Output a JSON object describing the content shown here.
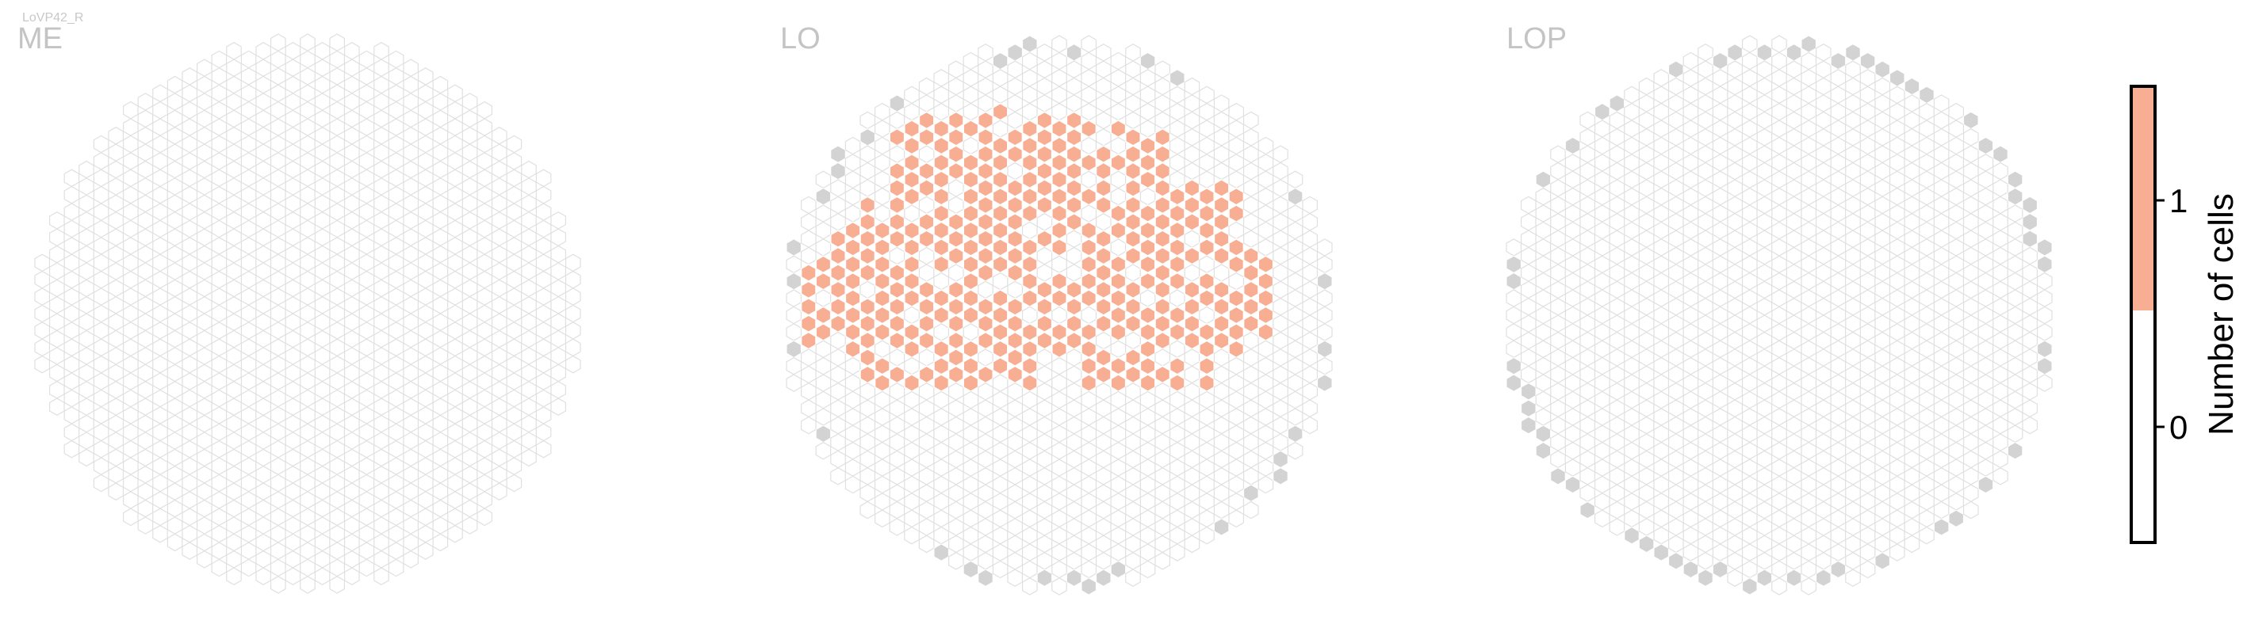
{
  "suptitle": "LoVP42_R",
  "colors": {
    "filled": "#f7ae92",
    "empty_stroke": "#e0e0e0",
    "empty_fill": "#ffffff",
    "boundary": "#d3d3d3",
    "colorbar_low": "#ffffff",
    "colorbar_high": "#f7ae92",
    "axis": "#000000"
  },
  "chart_data": [
    {
      "type": "heatmap",
      "title": "ME",
      "description_of_values": "Number of cells per hexagonal column; 0 = outlined empty column",
      "filled_columns": 0,
      "boundary_columns": 0
    },
    {
      "type": "heatmap",
      "title": "LO",
      "description_of_values": "Number of cells per hexagonal column; orange columns contain 1 cell",
      "filled_value": 1,
      "filled_region_note": "upper-centre patch of columns with 1 cell",
      "boundary_columns_present": true
    },
    {
      "type": "heatmap",
      "title": "LOP",
      "description_of_values": "Number of cells per hexagonal column; all columns 0",
      "filled_columns": 0,
      "boundary_columns_present": true
    }
  ],
  "colorbar": {
    "label": "Number of cells",
    "ticks": [
      "0",
      "1"
    ],
    "range": [
      -0.5,
      1.5
    ]
  }
}
